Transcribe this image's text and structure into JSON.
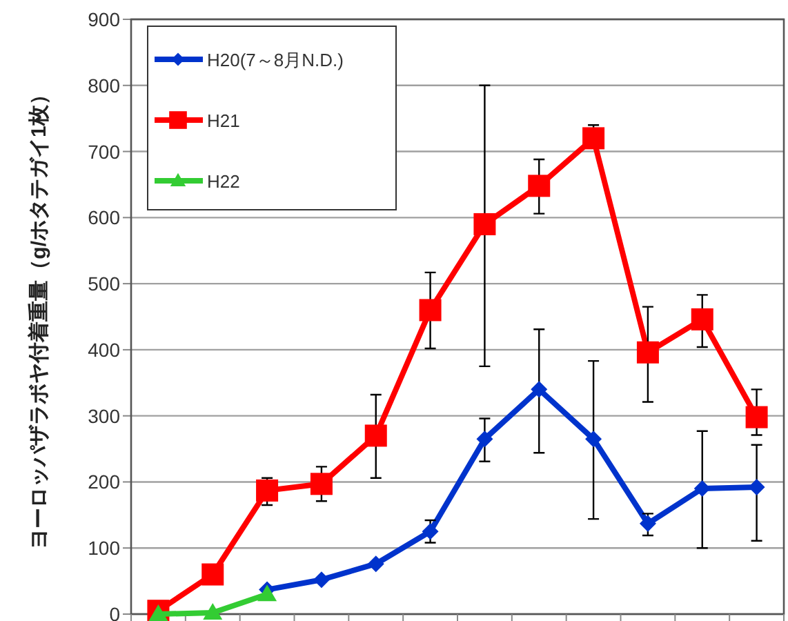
{
  "chart_data": {
    "type": "line",
    "ylabel": "ヨーロッパザラボヤ付着重量（g/ホタテガイ1枚）",
    "categories": [
      null,
      null,
      null,
      null,
      null,
      null,
      null,
      null,
      null,
      null,
      null,
      null
    ],
    "ylim": [
      0,
      900
    ],
    "yticks": [
      0,
      100,
      200,
      300,
      400,
      500,
      600,
      700,
      800,
      900
    ],
    "grid": "y",
    "legend": "top left",
    "series": [
      {
        "name": "H20(7～8月N.D.)",
        "color": "#0033cc",
        "marker": "diamond",
        "values": [
          null,
          null,
          37,
          52,
          76,
          125,
          265,
          340,
          265,
          137,
          190,
          192
        ],
        "errors": [
          null,
          null,
          null,
          null,
          null,
          [
            108,
            142
          ],
          [
            231,
            296
          ],
          [
            244,
            431
          ],
          [
            144,
            383
          ],
          [
            119,
            152
          ],
          [
            100,
            277
          ],
          [
            111,
            256
          ]
        ]
      },
      {
        "name": "H21",
        "color": "#ff0000",
        "marker": "square",
        "values": [
          5,
          60,
          187,
          197,
          270,
          460,
          590,
          648,
          720,
          396,
          446,
          298
        ],
        "errors": [
          null,
          null,
          [
            165,
            206
          ],
          [
            171,
            223
          ],
          [
            206,
            332
          ],
          [
            402,
            517
          ],
          [
            375,
            800
          ],
          [
            606,
            688
          ],
          [
            705,
            740
          ],
          [
            321,
            465
          ],
          [
            404,
            483
          ],
          [
            271,
            340
          ]
        ]
      },
      {
        "name": "H22",
        "color": "#33cc33",
        "marker": "triangle",
        "values": [
          0,
          2,
          30,
          null,
          null,
          null,
          null,
          null,
          null,
          null,
          null,
          null
        ]
      }
    ]
  }
}
